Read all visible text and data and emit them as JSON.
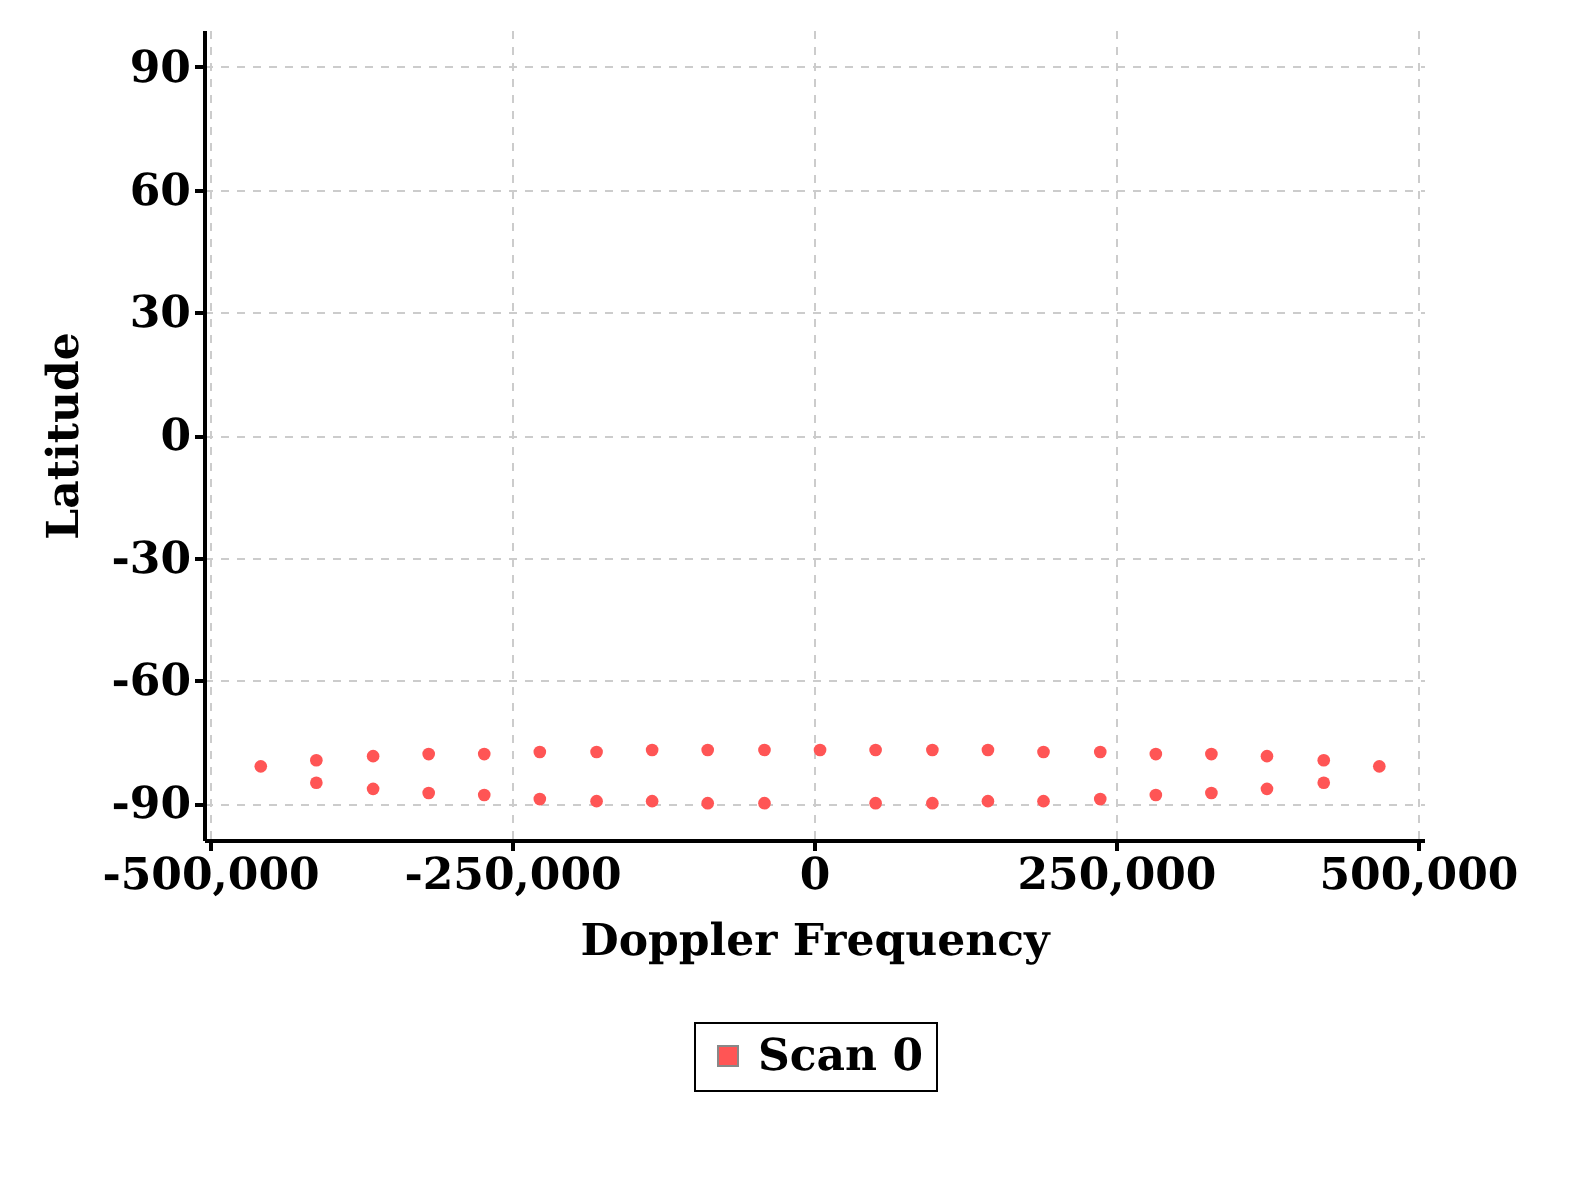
{
  "chart_data": {
    "type": "scatter",
    "xlabel": "Doppler Frequency",
    "ylabel": "Latitude",
    "xlim": [
      -505000,
      505000
    ],
    "ylim": [
      -99,
      99
    ],
    "xticks": [
      {
        "value": -500000,
        "label": "-500,000"
      },
      {
        "value": -250000,
        "label": "-250,000"
      },
      0,
      {
        "value": 250000,
        "label": "250,000"
      },
      {
        "value": 500000,
        "label": "500,000"
      }
    ],
    "yticks": [
      -90,
      -60,
      -30,
      0,
      30,
      60,
      90
    ],
    "grid": true,
    "legend": "bottom",
    "marker": "circle",
    "series": [
      {
        "name": "Scan 0",
        "color": "#ff5555",
        "x": [
          -458000,
          -412000,
          -365000,
          -319000,
          -273000,
          -227000,
          -180000,
          -134000,
          -88000,
          -41000,
          5000,
          51000,
          98000,
          144000,
          190000,
          237000,
          283000,
          329000,
          375000,
          422000,
          468000,
          422000,
          375000,
          329000,
          283000,
          237000,
          190000,
          144000,
          98000,
          51000,
          -41000,
          -88000,
          -134000,
          -180000,
          -227000,
          -273000,
          -319000,
          -365000,
          -412000
        ],
        "values": [
          -81,
          -79.5,
          -78.5,
          -78,
          -78,
          -77.5,
          -77.5,
          -77,
          -77,
          -77,
          -77,
          -77,
          -77,
          -77,
          -77.5,
          -77.5,
          -78,
          -78,
          -78.5,
          -79.5,
          -81,
          -85,
          -86.5,
          -87.5,
          -88,
          -89,
          -89.5,
          -89.5,
          -90,
          -90,
          -90,
          -90,
          -89.5,
          -89.5,
          -89,
          -88,
          -87.5,
          -86.5,
          -85
        ]
      }
    ]
  }
}
